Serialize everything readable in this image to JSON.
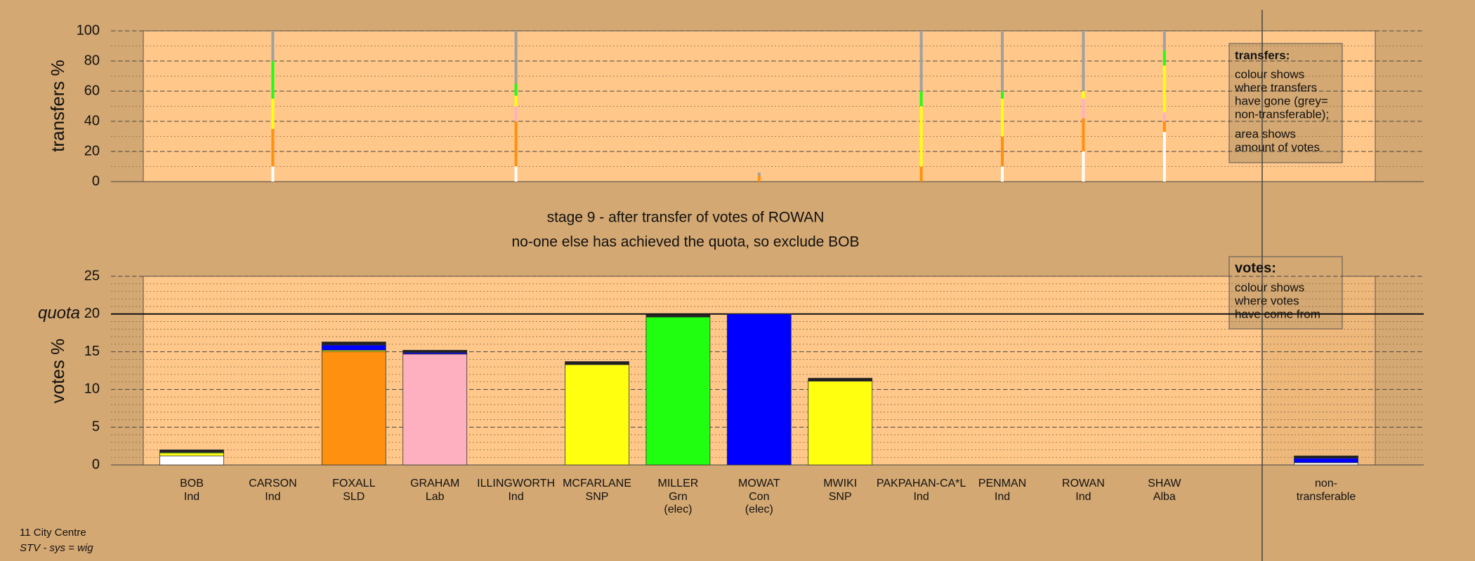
{
  "chart_data": [
    {
      "type": "bar",
      "stacked": true,
      "ylabel": "transfers %",
      "ylim": [
        0,
        100
      ],
      "yticks": [
        0,
        20,
        40,
        60,
        80,
        100
      ],
      "grid": true,
      "minor_grid_step": 10,
      "note": {
        "title": "transfers:",
        "lines": [
          "colour shows",
          "where transfers",
          "have gone (grey=",
          "non-transferable);",
          "area shows",
          "amount of votes"
        ]
      },
      "series": [
        {
          "color": "#ffffff",
          "values": [
            0,
            10,
            0,
            0,
            10,
            0,
            0,
            0,
            0,
            0,
            10,
            20,
            33,
            null
          ]
        },
        {
          "color": "#ff9010",
          "values": [
            0,
            25,
            0,
            0,
            30,
            0,
            0,
            4,
            0,
            10,
            20,
            22,
            7,
            null
          ]
        },
        {
          "color": "#ffb0c0",
          "values": [
            0,
            0,
            0,
            0,
            10,
            0,
            0,
            0,
            0,
            0,
            0,
            13,
            6,
            null
          ]
        },
        {
          "color": "#ffff10",
          "values": [
            0,
            20,
            0,
            0,
            7,
            0,
            0,
            0,
            0,
            40,
            25,
            5,
            31,
            null
          ]
        },
        {
          "color": "#20ff10",
          "values": [
            0,
            25,
            0,
            0,
            8,
            0,
            0,
            0,
            0,
            10,
            5,
            0,
            10,
            null
          ]
        },
        {
          "color": "#a0a0a0",
          "values": [
            0,
            20,
            0,
            0,
            35,
            0,
            0,
            2,
            0,
            40,
            40,
            40,
            13,
            null
          ]
        }
      ]
    },
    {
      "type": "bar",
      "stacked": true,
      "ylabel": "votes %",
      "title": "stage 9 - after transfer of votes of ROWAN",
      "subtitle": "no-one else has achieved the quota, so exclude BOB",
      "ylim": [
        0,
        25
      ],
      "yticks": [
        0,
        5,
        10,
        15,
        20,
        25
      ],
      "grid": true,
      "minor_grid_step": 1,
      "quota": {
        "value": 20,
        "label": "quota"
      },
      "note": {
        "title": "votes:",
        "lines": [
          "colour shows",
          "where votes",
          "have come from"
        ]
      },
      "categories": [
        "BOB",
        "CARSON",
        "FOXALL",
        "GRAHAM",
        "ILLINGWORTH",
        "MCFARLANE",
        "MILLER",
        "MOWAT",
        "MWIKI",
        "PAKPAHAN-CA*L",
        "PENMAN",
        "ROWAN",
        "SHAW",
        "non-"
      ],
      "category_sublabels": [
        [
          "Ind"
        ],
        [
          "Ind"
        ],
        [
          "SLD"
        ],
        [
          "Lab"
        ],
        [
          "Ind"
        ],
        [
          "SNP"
        ],
        [
          "Grn",
          "(elec)"
        ],
        [
          "Con",
          "(elec)"
        ],
        [
          "SNP"
        ],
        [
          "Ind"
        ],
        [
          "Ind"
        ],
        [
          "Ind"
        ],
        [
          "Alba"
        ],
        [
          "transferable"
        ]
      ],
      "series": [
        {
          "color": "#ffffff",
          "values": [
            1.2,
            0,
            0,
            0,
            0,
            0,
            0,
            0,
            0,
            0,
            0,
            0,
            0,
            0.3
          ]
        },
        {
          "color": "#ff9010",
          "values": [
            0,
            0,
            15.0,
            0,
            0,
            0,
            0,
            0,
            0,
            0,
            0,
            0,
            0,
            0
          ]
        },
        {
          "color": "#ffb0c0",
          "values": [
            0,
            0,
            0,
            14.7,
            0,
            0,
            0,
            0,
            0,
            0,
            0,
            0,
            0,
            0
          ]
        },
        {
          "color": "#ffff10",
          "values": [
            0.4,
            0,
            0.2,
            0,
            0,
            13.3,
            0,
            0,
            11.1,
            0,
            0,
            0,
            0,
            0
          ]
        },
        {
          "color": "#20ff10",
          "values": [
            0.1,
            0,
            0,
            0,
            0,
            0,
            19.6,
            0,
            0,
            0,
            0,
            0,
            0,
            0
          ]
        },
        {
          "color": "#0000ff",
          "values": [
            0,
            0,
            0.7,
            0.2,
            0,
            0,
            0,
            20.0,
            0,
            0,
            0,
            0,
            0,
            0.6
          ]
        },
        {
          "color": "#202020",
          "values": [
            0.3,
            0,
            0.4,
            0.3,
            0,
            0.4,
            0.3,
            0,
            0.4,
            0,
            0,
            0,
            0,
            0.3
          ]
        }
      ]
    }
  ],
  "footer": {
    "place": "11 City Centre",
    "system": "STV - sys = wig"
  }
}
